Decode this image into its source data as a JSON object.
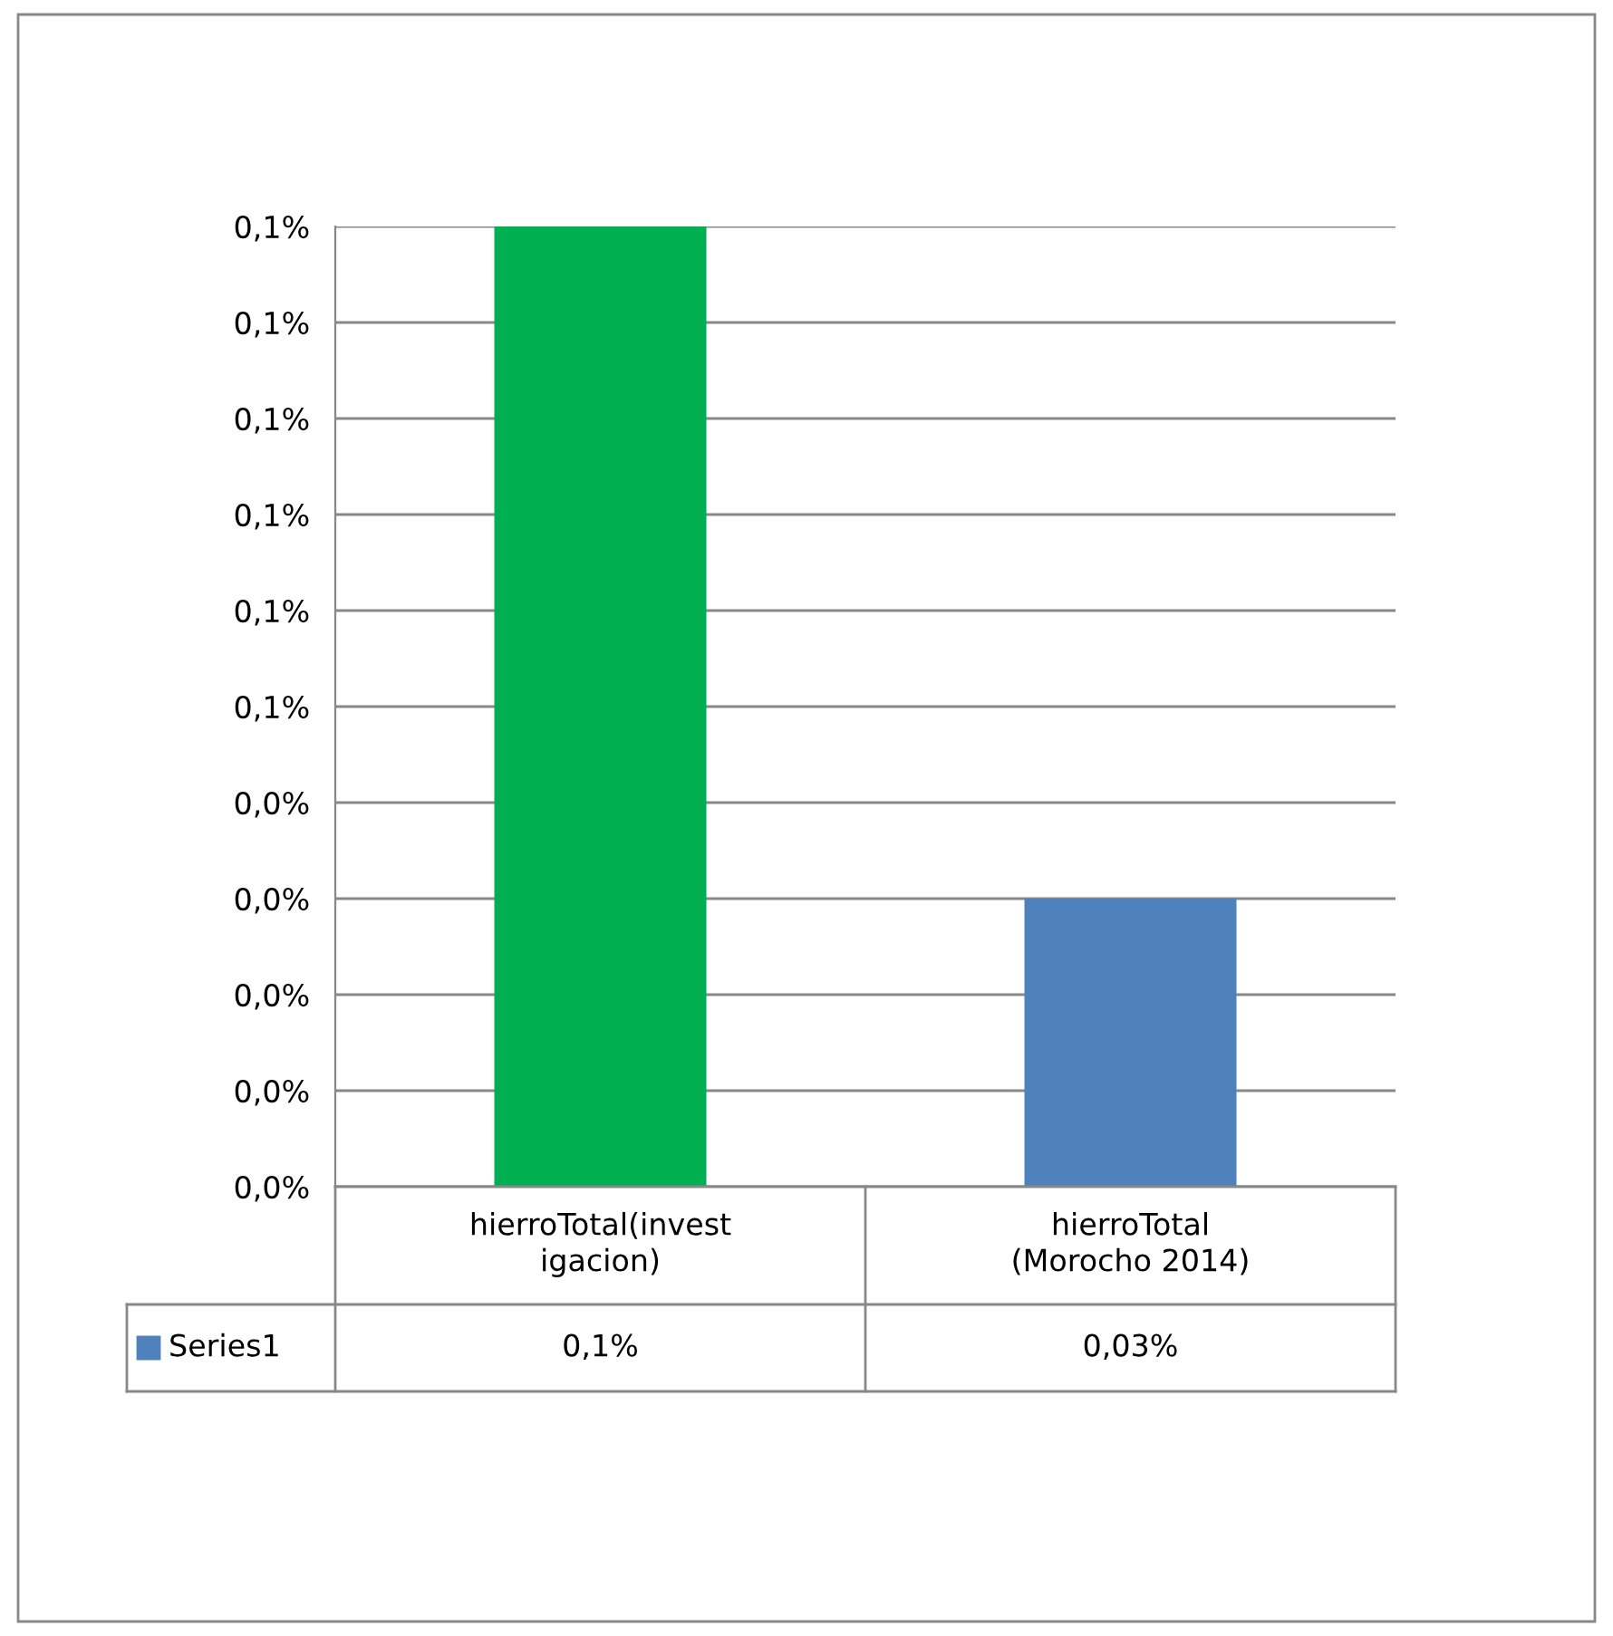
{
  "chart_data": {
    "type": "bar",
    "categories": [
      "hierroTotal(invest\nigacion)",
      "hierroTotal\n(Morocho 2014)"
    ],
    "series": [
      {
        "name": "Series1",
        "color": "#4f81bd",
        "colors": [
          "#00b050",
          "#4f81bd"
        ],
        "values": [
          0.1,
          0.03
        ],
        "value_labels": [
          "0,1%",
          "0,03%"
        ]
      }
    ],
    "ylim": [
      0,
      0.1
    ],
    "yticks": [
      {
        "value": 0,
        "label": "0,0%"
      },
      {
        "value": 0.01,
        "label": "0,0%"
      },
      {
        "value": 0.02,
        "label": "0,0%"
      },
      {
        "value": 0.03,
        "label": "0,0%"
      },
      {
        "value": 0.04,
        "label": "0,0%"
      },
      {
        "value": 0.05,
        "label": "0,1%"
      },
      {
        "value": 0.06,
        "label": "0,1%"
      },
      {
        "value": 0.07,
        "label": "0,1%"
      },
      {
        "value": 0.08,
        "label": "0,1%"
      },
      {
        "value": 0.09,
        "label": "0,1%"
      },
      {
        "value": 0.1,
        "label": "0,1%"
      }
    ],
    "grid": "y"
  }
}
